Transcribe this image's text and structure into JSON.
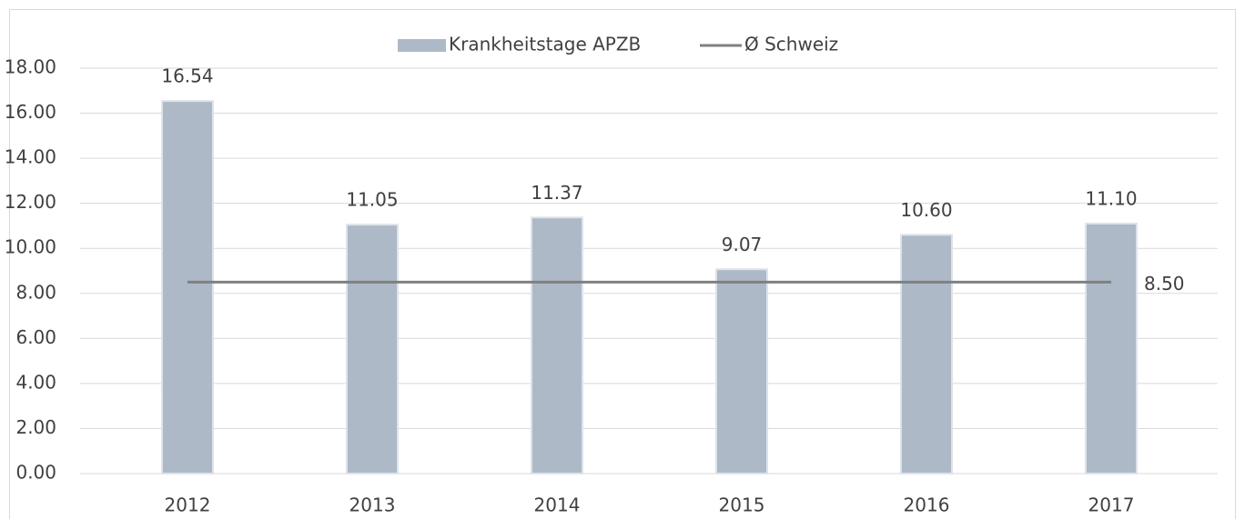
{
  "chart_data": {
    "type": "bar",
    "categories": [
      "2012",
      "2013",
      "2014",
      "2015",
      "2016",
      "2017"
    ],
    "series": [
      {
        "name": "Krankheitstage APZB",
        "type": "bar",
        "color": "#adb9c7",
        "values": [
          16.54,
          11.05,
          11.37,
          9.07,
          10.6,
          11.1
        ],
        "value_labels": [
          "16.54",
          "11.05",
          "11.37",
          "9.07",
          "10.60",
          "11.10"
        ]
      },
      {
        "name": "Ø Schweiz",
        "type": "line",
        "color": "#808080",
        "values": [
          8.5,
          8.5,
          8.5,
          8.5,
          8.5,
          8.5
        ],
        "value_labels": [
          null,
          null,
          null,
          null,
          null,
          "8.50"
        ]
      }
    ],
    "ylim": [
      0,
      18
    ],
    "yticks": [
      {
        "value": 0,
        "label": "0.00"
      },
      {
        "value": 2,
        "label": "2.00"
      },
      {
        "value": 4,
        "label": "4.00"
      },
      {
        "value": 6,
        "label": "6.00"
      },
      {
        "value": 8,
        "label": "8.00"
      },
      {
        "value": 10,
        "label": "10.00"
      },
      {
        "value": 12,
        "label": "12.00"
      },
      {
        "value": 14,
        "label": "14.00"
      },
      {
        "value": 16,
        "label": "16.00"
      },
      {
        "value": 18,
        "label": "18.00"
      }
    ],
    "grid": true,
    "legend": "top"
  }
}
